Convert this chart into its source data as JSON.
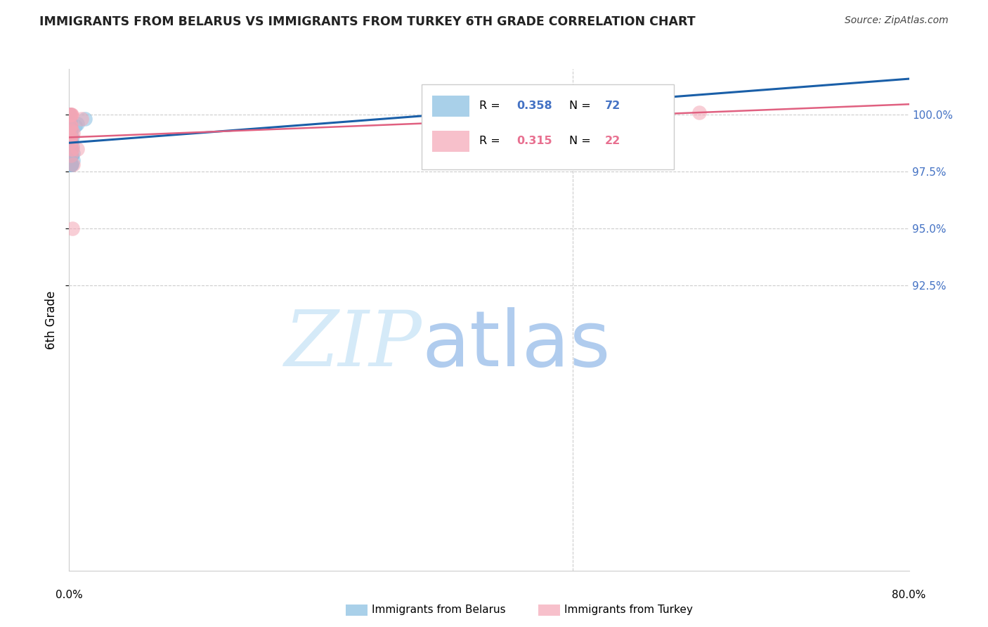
{
  "title": "IMMIGRANTS FROM BELARUS VS IMMIGRANTS FROM TURKEY 6TH GRADE CORRELATION CHART",
  "source": "Source: ZipAtlas.com",
  "ylabel": "6th Grade",
  "x_range": [
    0.0,
    80.0
  ],
  "y_range": [
    80.0,
    102.0
  ],
  "y_ticks": [
    92.5,
    95.0,
    97.5,
    100.0
  ],
  "y_tick_labels": [
    "92.5%",
    "95.0%",
    "97.5%",
    "100.0%"
  ],
  "x_tick_left": "0.0%",
  "x_tick_right": "80.0%",
  "R_belarus": "0.358",
  "N_belarus": "72",
  "R_turkey": "0.315",
  "N_turkey": "22",
  "color_belarus": "#85bde0",
  "color_turkey": "#f4a6b5",
  "line_color_belarus": "#1a5fa8",
  "line_color_turkey": "#e06080",
  "legend_label_belarus": "Immigrants from Belarus",
  "legend_label_turkey": "Immigrants from Turkey",
  "R_color_belarus": "#4472c4",
  "R_color_turkey": "#e87090",
  "watermark_zip_color": "#d5eaf8",
  "watermark_atlas_color": "#b0ccee",
  "title_color": "#222222",
  "source_color": "#444444",
  "tick_color_right": "#4472c4",
  "grid_color": "#cccccc",
  "bel_x": [
    0.04,
    0.06,
    0.05,
    0.07,
    0.04,
    0.06,
    0.08,
    0.1,
    0.04,
    0.06,
    0.08,
    0.1,
    0.12,
    0.04,
    0.06,
    0.08,
    0.1,
    0.12,
    0.14,
    0.04,
    0.06,
    0.08,
    0.1,
    0.12,
    0.14,
    0.16,
    0.04,
    0.06,
    0.08,
    0.1,
    0.12,
    0.14,
    0.16,
    0.18,
    0.04,
    0.06,
    0.08,
    0.1,
    0.12,
    0.14,
    0.16,
    0.18,
    0.2,
    0.04,
    0.06,
    0.08,
    0.1,
    0.12,
    0.14,
    0.16,
    0.18,
    0.2,
    0.22,
    0.04,
    0.06,
    0.08,
    0.1,
    0.12,
    0.14,
    0.16,
    0.18,
    0.2,
    0.22,
    0.24,
    0.38,
    0.28,
    0.55,
    1.5,
    0.8,
    36.0,
    0.3,
    0.35
  ],
  "bel_y": [
    100.0,
    100.0,
    99.9,
    99.9,
    99.7,
    99.7,
    99.7,
    99.7,
    99.5,
    99.5,
    99.5,
    99.5,
    99.5,
    99.3,
    99.3,
    99.3,
    99.3,
    99.3,
    99.3,
    99.0,
    99.0,
    99.0,
    99.0,
    99.0,
    99.0,
    99.0,
    98.8,
    98.8,
    98.8,
    98.8,
    98.8,
    98.8,
    98.8,
    98.8,
    98.5,
    98.5,
    98.5,
    98.5,
    98.5,
    98.5,
    98.5,
    98.5,
    98.5,
    98.2,
    98.2,
    98.2,
    98.2,
    98.2,
    98.2,
    98.2,
    98.2,
    98.2,
    98.2,
    97.8,
    97.8,
    97.8,
    97.8,
    97.8,
    97.8,
    97.8,
    97.8,
    97.8,
    97.8,
    97.8,
    98.0,
    99.0,
    99.5,
    99.8,
    99.6,
    100.0,
    98.6,
    98.3
  ],
  "tur_x": [
    0.06,
    0.1,
    0.14,
    0.18,
    0.22,
    0.08,
    0.12,
    0.16,
    0.08,
    0.12,
    0.16,
    0.24,
    0.28,
    0.4,
    1.2,
    0.8,
    60.0,
    0.35,
    0.15,
    0.3,
    0.2,
    0.25
  ],
  "tur_y": [
    100.0,
    100.0,
    100.0,
    100.0,
    100.0,
    99.5,
    99.5,
    99.5,
    99.0,
    99.0,
    99.0,
    98.5,
    98.5,
    97.8,
    99.8,
    98.5,
    100.1,
    99.2,
    98.2,
    95.0,
    98.8,
    99.3
  ]
}
